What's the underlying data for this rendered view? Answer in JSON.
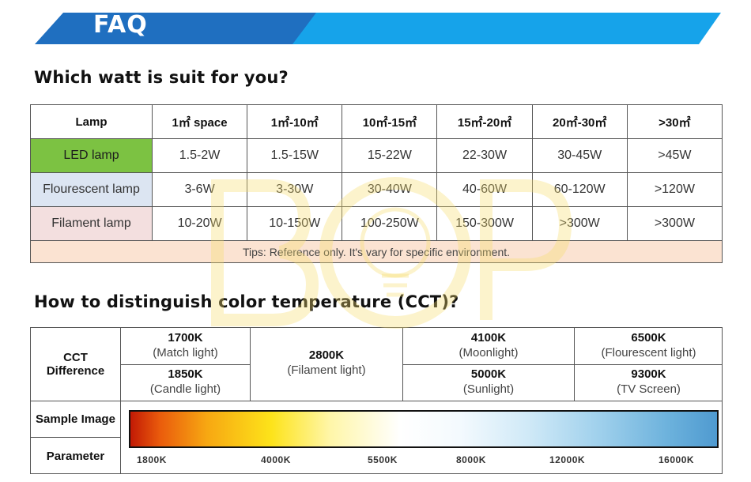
{
  "banner": {
    "title": "FAQ"
  },
  "watt_section": {
    "heading": "Which watt is suit for you?",
    "headers": [
      "Lamp",
      "1㎡ space",
      "1㎡-10㎡",
      "10㎡-15㎡",
      "15㎡-20㎡",
      "20㎡-30㎡",
      ">30㎡"
    ],
    "rows": [
      {
        "lamp": "LED lamp",
        "values": [
          "1.5-2W",
          "1.5-15W",
          "15-22W",
          "22-30W",
          "30-45W",
          ">45W"
        ]
      },
      {
        "lamp": "Flourescent lamp",
        "values": [
          "3-6W",
          "3-30W",
          "30-40W",
          "40-60W",
          "60-120W",
          ">120W"
        ]
      },
      {
        "lamp": "Filament lamp",
        "values": [
          "10-20W",
          "10-150W",
          "100-250W",
          "150-300W",
          ">300W",
          ">300W"
        ]
      }
    ],
    "tips": "Tips: Reference only. It's vary for specific environment."
  },
  "cct_section": {
    "heading": "How to distinguish color temperature (CCT)?",
    "row_labels": {
      "cct_line1": "CCT",
      "cct_line2": "Difference",
      "sample": "Sample Image",
      "parameter": "Parameter"
    },
    "entries": {
      "k1700": {
        "k": "1700K",
        "desc": "(Match light)"
      },
      "k1850": {
        "k": "1850K",
        "desc": "(Candle light)"
      },
      "k2800": {
        "k": "2800K",
        "desc": "(Filament light)"
      },
      "k4100": {
        "k": "4100K",
        "desc": "(Moonlight)"
      },
      "k5000": {
        "k": "5000K",
        "desc": "(Sunlight)"
      },
      "k6500": {
        "k": "6500K",
        "desc": "(Flourescent light)"
      },
      "k9300": {
        "k": "9300K",
        "desc": "(TV Screen)"
      }
    },
    "parameter_ticks": [
      "1800K",
      "4000K",
      "5500K",
      "8000K",
      "12000K",
      "16000K"
    ]
  },
  "colors": {
    "banner_dark": "#1f6fc0",
    "banner_light": "#16a3ea",
    "led_green": "#7cc242",
    "flourescent_blue": "#dce5f2",
    "filament_pink": "#f3dfdf",
    "tips_bg": "#fbe3d2"
  }
}
